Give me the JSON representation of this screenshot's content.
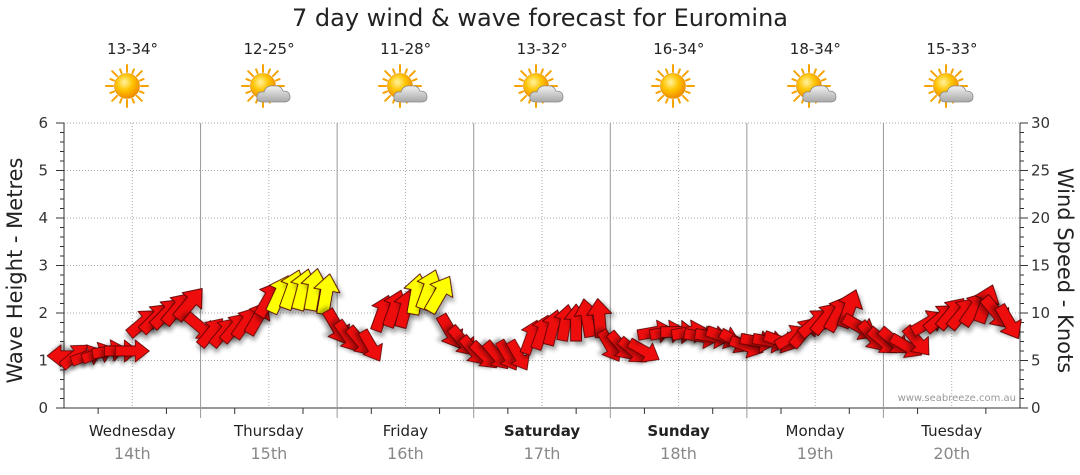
{
  "title": "7 day wind & wave forecast for Euromina",
  "watermark": "www.seabreeze.com.au",
  "days": [
    {
      "name": "Wednesday",
      "date": "14th",
      "bold": false,
      "temp": "13-34°",
      "icon": "sunny-icon"
    },
    {
      "name": "Thursday",
      "date": "15th",
      "bold": false,
      "temp": "12-25°",
      "icon": "sun-cloud-icon"
    },
    {
      "name": "Friday",
      "date": "16th",
      "bold": false,
      "temp": "11-28°",
      "icon": "sun-cloud-icon"
    },
    {
      "name": "Saturday",
      "date": "17th",
      "bold": true,
      "temp": "13-32°",
      "icon": "sun-cloud-icon"
    },
    {
      "name": "Sunday",
      "date": "18th",
      "bold": true,
      "temp": "16-34°",
      "icon": "sunny-icon"
    },
    {
      "name": "Monday",
      "date": "19th",
      "bold": false,
      "temp": "18-34°",
      "icon": "sun-cloud-icon"
    },
    {
      "name": "Tuesday",
      "date": "20th",
      "bold": false,
      "temp": "15-33°",
      "icon": "sun-cloud-icon"
    }
  ],
  "colors": {
    "arrow_red": "#ee1111",
    "arrow_yellow": "#ffff00",
    "grid": "#999999"
  },
  "chart_data": {
    "type": "scatter",
    "title": "7 day wind & wave forecast for Euromina",
    "ylabel_left": "Wave Height - Metres",
    "ylabel_right": "Wind Speed - Knots",
    "ylim_left": [
      0,
      6
    ],
    "ylim_right": [
      0,
      30
    ],
    "yticks_left": [
      "0",
      "1",
      "2",
      "3",
      "4",
      "5",
      "6"
    ],
    "yticks_right": [
      "0",
      "5",
      "10",
      "15",
      "20",
      "25",
      "30"
    ],
    "grid": true,
    "series": [
      {
        "x": [
          0.0,
          0.08,
          0.17,
          0.25,
          0.33,
          0.42,
          0.5,
          0.58,
          0.67,
          0.75,
          0.83,
          0.92,
          1.0,
          1.08,
          1.17,
          1.25,
          1.33,
          1.42,
          1.5,
          1.58,
          1.67,
          1.75,
          1.83,
          1.92,
          2.0,
          2.08,
          2.17,
          2.25,
          2.33,
          2.42,
          2.5,
          2.58,
          2.67,
          2.75,
          2.83,
          2.92,
          3.0,
          3.08,
          3.17,
          3.25,
          3.33,
          3.42,
          3.5,
          3.58,
          3.67,
          3.75,
          3.83,
          3.92,
          4.0,
          4.08,
          4.17,
          4.25,
          4.33,
          4.42,
          4.5,
          4.58,
          4.67,
          4.75,
          4.83,
          4.92,
          5.0,
          5.08,
          5.17,
          5.25,
          5.33,
          5.42,
          5.5,
          5.58,
          5.67,
          5.75,
          5.83,
          5.92,
          6.0,
          6.08,
          6.17,
          6.25,
          6.33,
          6.42,
          6.5,
          6.58,
          6.67,
          6.75,
          6.83,
          6.92
        ],
        "wind_knots": [
          5.5,
          5,
          5,
          5,
          5.5,
          6,
          6,
          9,
          10,
          10.5,
          11,
          12,
          8,
          7,
          7,
          7.5,
          8,
          9,
          12,
          13,
          14,
          15,
          15.5,
          14,
          11,
          8,
          7,
          6.5,
          10,
          11,
          11.5,
          14,
          14.5,
          13.5,
          10,
          8,
          7,
          6,
          5.5,
          5,
          5,
          7.5,
          8,
          8.5,
          9,
          9.5,
          11,
          11.5,
          7,
          6,
          6,
          6,
          7.5,
          7.5,
          8,
          8,
          7.5,
          7.5,
          7.5,
          7,
          7,
          7,
          7,
          7,
          7.5,
          8,
          10,
          10.5,
          12,
          12.5,
          10,
          8,
          7.5,
          7.5,
          7,
          7.5,
          9,
          10,
          10.5,
          10.5,
          11.5,
          12.5,
          11.5,
          10
        ],
        "wave_height_m": [
          1.1,
          1.1,
          1.1,
          1.15,
          1.2,
          1.2,
          1.2,
          1.8,
          1.9,
          2.0,
          2.1,
          2.2,
          1.7,
          1.6,
          1.6,
          1.7,
          1.8,
          1.9,
          2.3,
          2.4,
          2.5,
          2.5,
          2.5,
          2.4,
          1.7,
          1.5,
          1.4,
          1.3,
          2.0,
          2.1,
          2.1,
          2.4,
          2.5,
          2.4,
          1.6,
          1.4,
          1.2,
          1.1,
          1.1,
          1.1,
          1.1,
          1.5,
          1.6,
          1.7,
          1.8,
          1.8,
          1.9,
          1.9,
          1.3,
          1.3,
          1.2,
          1.2,
          1.6,
          1.6,
          1.6,
          1.6,
          1.5,
          1.5,
          1.5,
          1.4,
          1.3,
          1.4,
          1.4,
          1.4,
          1.5,
          1.6,
          1.8,
          1.9,
          2.0,
          2.1,
          1.7,
          1.5,
          1.4,
          1.4,
          1.3,
          1.4,
          1.8,
          1.9,
          2.0,
          2.0,
          2.1,
          2.2,
          2.0,
          1.8
        ],
        "wind_from_deg": [
          90,
          230,
          250,
          250,
          260,
          270,
          270,
          230,
          225,
          225,
          220,
          220,
          310,
          220,
          220,
          220,
          215,
          210,
          210,
          205,
          200,
          195,
          190,
          190,
          330,
          325,
          320,
          330,
          200,
          200,
          195,
          190,
          200,
          210,
          330,
          320,
          320,
          315,
          320,
          330,
          330,
          200,
          200,
          195,
          190,
          180,
          170,
          175,
          330,
          320,
          310,
          300,
          260,
          260,
          270,
          260,
          280,
          280,
          290,
          300,
          290,
          280,
          280,
          290,
          240,
          220,
          230,
          220,
          210,
          200,
          300,
          320,
          310,
          310,
          300,
          320,
          240,
          230,
          220,
          220,
          215,
          200,
          320,
          330
        ]
      }
    ]
  }
}
